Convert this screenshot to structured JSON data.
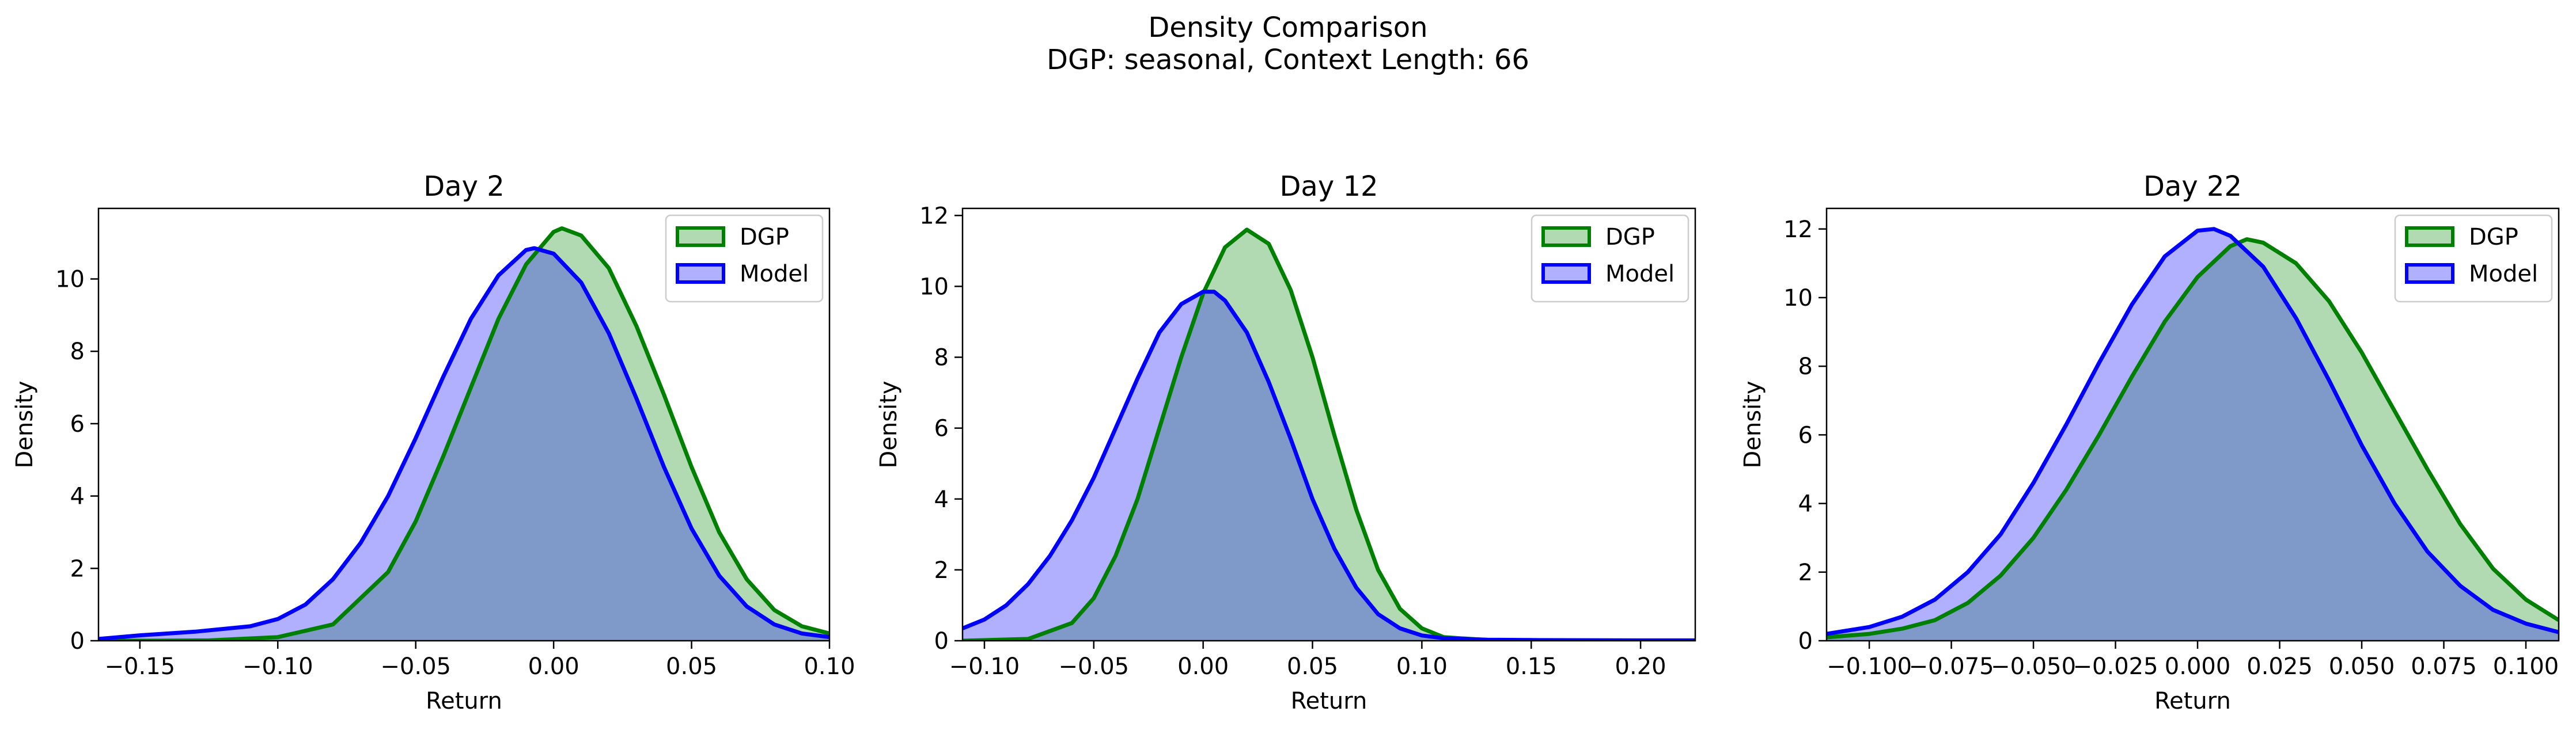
{
  "figure": {
    "title": "Density Comparison",
    "subtitle": "DGP: seasonal, Context Length: 66"
  },
  "colors": {
    "dgp_line": "#008000",
    "dgp_fill": "#b2dab2",
    "model_line": "#0000ff",
    "model_fill": "#b0b0ff",
    "overlap_fill": "#7f9ac8"
  },
  "chart_data": [
    {
      "type": "area",
      "title": "Day 2",
      "xlabel": "Return",
      "ylabel": "Density",
      "xlim": [
        -0.165,
        0.1
      ],
      "ylim": [
        0,
        11.95
      ],
      "xticks": [
        -0.15,
        -0.1,
        -0.05,
        0.0,
        0.05,
        0.1
      ],
      "xtick_labels": [
        "−0.15",
        "−0.10",
        "−0.05",
        "0.00",
        "0.05",
        "0.10"
      ],
      "yticks": [
        0,
        2,
        4,
        6,
        8,
        10
      ],
      "ytick_labels": [
        "0",
        "2",
        "4",
        "6",
        "8",
        "10"
      ],
      "legend": {
        "placement": "top-right",
        "entries": [
          "DGP",
          "Model"
        ]
      },
      "series": [
        {
          "name": "DGP",
          "color": "#008000",
          "x": [
            -0.165,
            -0.15,
            -0.125,
            -0.1,
            -0.08,
            -0.06,
            -0.05,
            -0.04,
            -0.03,
            -0.02,
            -0.01,
            0.0,
            0.003,
            0.01,
            0.02,
            0.03,
            0.04,
            0.05,
            0.06,
            0.07,
            0.08,
            0.09,
            0.1
          ],
          "y": [
            0.0,
            0.0,
            0.01,
            0.1,
            0.45,
            1.9,
            3.3,
            5.1,
            7.0,
            8.9,
            10.4,
            11.3,
            11.4,
            11.2,
            10.3,
            8.7,
            6.8,
            4.8,
            3.0,
            1.7,
            0.85,
            0.4,
            0.2
          ]
        },
        {
          "name": "Model",
          "color": "#0000ff",
          "x": [
            -0.165,
            -0.15,
            -0.13,
            -0.11,
            -0.1,
            -0.09,
            -0.08,
            -0.07,
            -0.06,
            -0.05,
            -0.04,
            -0.03,
            -0.02,
            -0.01,
            -0.007,
            0.0,
            0.01,
            0.02,
            0.03,
            0.04,
            0.05,
            0.06,
            0.07,
            0.08,
            0.09,
            0.1
          ],
          "y": [
            0.05,
            0.15,
            0.25,
            0.4,
            0.6,
            1.0,
            1.7,
            2.7,
            4.0,
            5.6,
            7.3,
            8.9,
            10.1,
            10.8,
            10.85,
            10.7,
            9.9,
            8.5,
            6.7,
            4.8,
            3.1,
            1.8,
            0.95,
            0.45,
            0.2,
            0.1
          ]
        }
      ]
    },
    {
      "type": "area",
      "title": "Day 12",
      "xlabel": "Return",
      "ylabel": "Density",
      "xlim": [
        -0.11,
        0.225
      ],
      "ylim": [
        0,
        12.2
      ],
      "xticks": [
        -0.1,
        -0.05,
        0.0,
        0.05,
        0.1,
        0.15,
        0.2
      ],
      "xtick_labels": [
        "−0.10",
        "−0.05",
        "0.00",
        "0.05",
        "0.10",
        "0.15",
        "0.20"
      ],
      "yticks": [
        0,
        2,
        4,
        6,
        8,
        10,
        12
      ],
      "ytick_labels": [
        "0",
        "2",
        "4",
        "6",
        "8",
        "10",
        "12"
      ],
      "legend": {
        "placement": "top-right",
        "entries": [
          "DGP",
          "Model"
        ]
      },
      "series": [
        {
          "name": "DGP",
          "color": "#008000",
          "x": [
            -0.11,
            -0.08,
            -0.06,
            -0.05,
            -0.04,
            -0.03,
            -0.02,
            -0.01,
            0.0,
            0.01,
            0.02,
            0.03,
            0.04,
            0.05,
            0.06,
            0.07,
            0.08,
            0.09,
            0.1,
            0.11,
            0.13,
            0.15,
            0.225
          ],
          "y": [
            0.0,
            0.05,
            0.5,
            1.2,
            2.4,
            4.0,
            6.0,
            8.0,
            9.8,
            11.1,
            11.6,
            11.2,
            9.9,
            8.0,
            5.8,
            3.7,
            2.0,
            0.9,
            0.35,
            0.1,
            0.02,
            0.0,
            0.0
          ]
        },
        {
          "name": "Model",
          "color": "#0000ff",
          "x": [
            -0.11,
            -0.1,
            -0.09,
            -0.08,
            -0.07,
            -0.06,
            -0.05,
            -0.04,
            -0.03,
            -0.02,
            -0.01,
            0.0,
            0.005,
            0.01,
            0.02,
            0.03,
            0.04,
            0.05,
            0.06,
            0.07,
            0.08,
            0.09,
            0.1,
            0.11,
            0.13,
            0.15,
            0.2,
            0.225
          ],
          "y": [
            0.35,
            0.6,
            1.0,
            1.6,
            2.4,
            3.4,
            4.6,
            6.0,
            7.4,
            8.7,
            9.5,
            9.85,
            9.85,
            9.6,
            8.7,
            7.3,
            5.7,
            4.0,
            2.6,
            1.5,
            0.75,
            0.35,
            0.15,
            0.07,
            0.03,
            0.02,
            0.01,
            0.01
          ]
        }
      ]
    },
    {
      "type": "area",
      "title": "Day 22",
      "xlabel": "Return",
      "ylabel": "Density",
      "xlim": [
        -0.113,
        0.11
      ],
      "ylim": [
        0,
        12.6
      ],
      "xticks": [
        -0.1,
        -0.075,
        -0.05,
        -0.025,
        0.0,
        0.025,
        0.05,
        0.075,
        0.1
      ],
      "xtick_labels": [
        "−0.100",
        "−0.075",
        "−0.050",
        "−0.025",
        "0.000",
        "0.025",
        "0.050",
        "0.075",
        "0.100"
      ],
      "yticks": [
        0,
        2,
        4,
        6,
        8,
        10,
        12
      ],
      "ytick_labels": [
        "0",
        "2",
        "4",
        "6",
        "8",
        "10",
        "12"
      ],
      "legend": {
        "placement": "top-right",
        "entries": [
          "DGP",
          "Model"
        ]
      },
      "series": [
        {
          "name": "DGP",
          "color": "#008000",
          "x": [
            -0.113,
            -0.1,
            -0.09,
            -0.08,
            -0.07,
            -0.06,
            -0.05,
            -0.04,
            -0.03,
            -0.02,
            -0.01,
            0.0,
            0.01,
            0.015,
            0.02,
            0.03,
            0.04,
            0.05,
            0.06,
            0.07,
            0.08,
            0.09,
            0.1,
            0.11
          ],
          "y": [
            0.1,
            0.2,
            0.35,
            0.6,
            1.1,
            1.9,
            3.0,
            4.4,
            6.0,
            7.7,
            9.3,
            10.6,
            11.5,
            11.7,
            11.6,
            11.0,
            9.9,
            8.4,
            6.7,
            5.0,
            3.4,
            2.1,
            1.2,
            0.6
          ]
        },
        {
          "name": "Model",
          "color": "#0000ff",
          "x": [
            -0.113,
            -0.1,
            -0.09,
            -0.08,
            -0.07,
            -0.06,
            -0.05,
            -0.04,
            -0.03,
            -0.02,
            -0.01,
            0.0,
            0.005,
            0.01,
            0.02,
            0.03,
            0.04,
            0.05,
            0.06,
            0.07,
            0.08,
            0.09,
            0.1,
            0.11
          ],
          "y": [
            0.2,
            0.4,
            0.7,
            1.2,
            2.0,
            3.1,
            4.6,
            6.3,
            8.1,
            9.8,
            11.2,
            11.95,
            12.0,
            11.8,
            10.9,
            9.4,
            7.6,
            5.7,
            4.0,
            2.6,
            1.6,
            0.9,
            0.5,
            0.25
          ]
        }
      ]
    }
  ]
}
